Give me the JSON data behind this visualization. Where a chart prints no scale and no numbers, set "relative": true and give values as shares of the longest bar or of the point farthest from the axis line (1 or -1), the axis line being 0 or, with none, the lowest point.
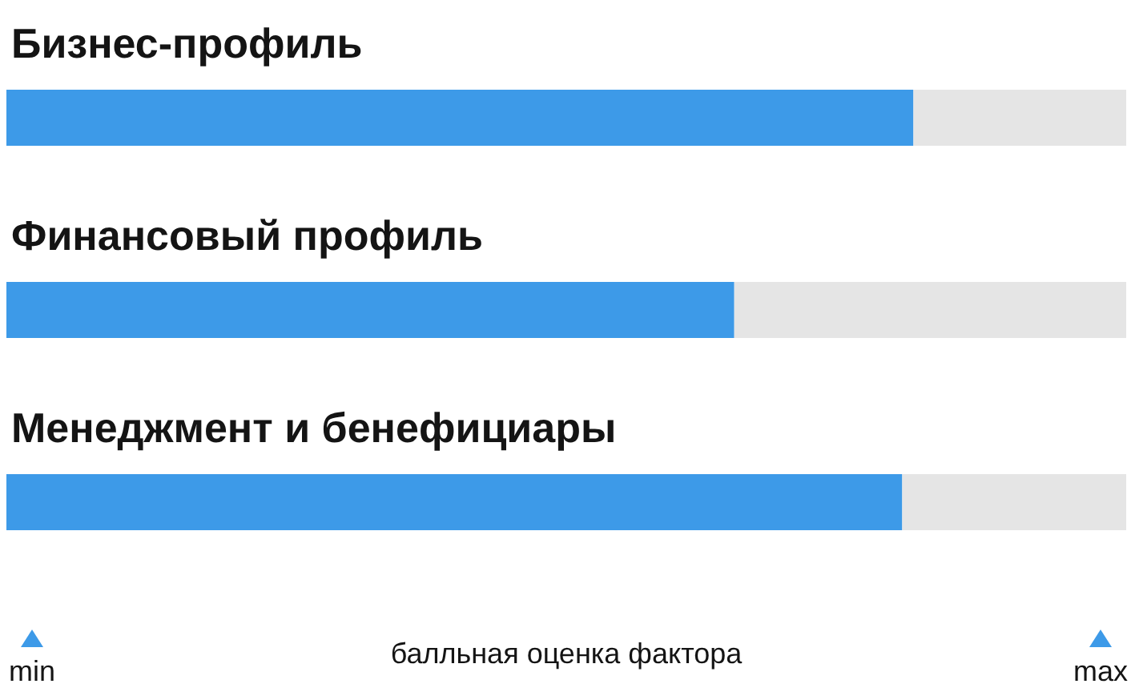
{
  "chart_data": {
    "type": "bar",
    "orientation": "horizontal",
    "stacked": true,
    "relative": true,
    "categories": [
      "Бизнес-профиль",
      "Финансовый профиль",
      "Менеджмент и бенефициары"
    ],
    "series": [
      {
        "color": "#3d9ae8",
        "values": [
          0.81,
          0.65,
          0.8
        ]
      },
      {
        "color": "#e5e5e5",
        "values": [
          0.19,
          0.35,
          0.2
        ]
      }
    ],
    "xlabel": "балльная оценка фактора",
    "annotations": [
      "min",
      "max"
    ]
  }
}
